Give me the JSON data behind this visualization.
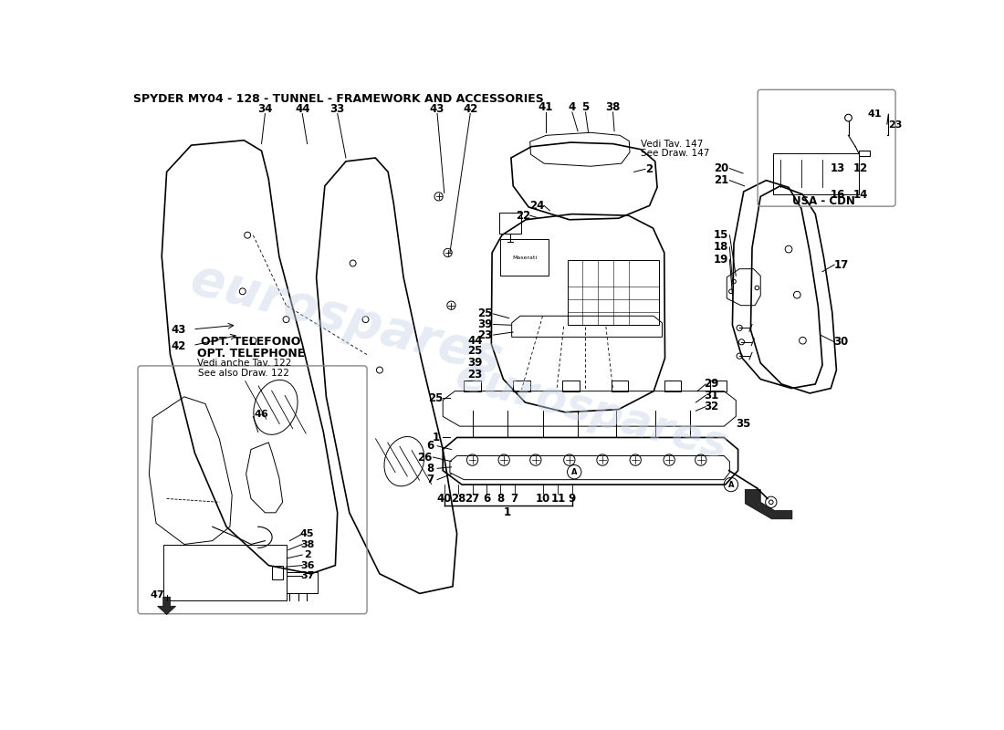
{
  "title": "SPYDER MY04 - 128 - TUNNEL - FRAMEWORK AND ACCESSORIES",
  "title_fontsize": 9,
  "background_color": "#ffffff",
  "line_color": "#000000",
  "watermark_text": "eurospares",
  "watermark_color": "#c8d4e8",
  "watermark_alpha": 0.45,
  "opt_text_line1": "OPT. TELEFONO",
  "opt_text_line2": "OPT. TELEPHONE",
  "usa_cdn_text": "USA - CDN",
  "vedi_tav_text": "Vedi Tav. 147",
  "see_draw_text": "See Draw. 147",
  "vedi_anche_text": "Vedi anche Tav. 122",
  "see_also_text": "See also Draw. 122"
}
